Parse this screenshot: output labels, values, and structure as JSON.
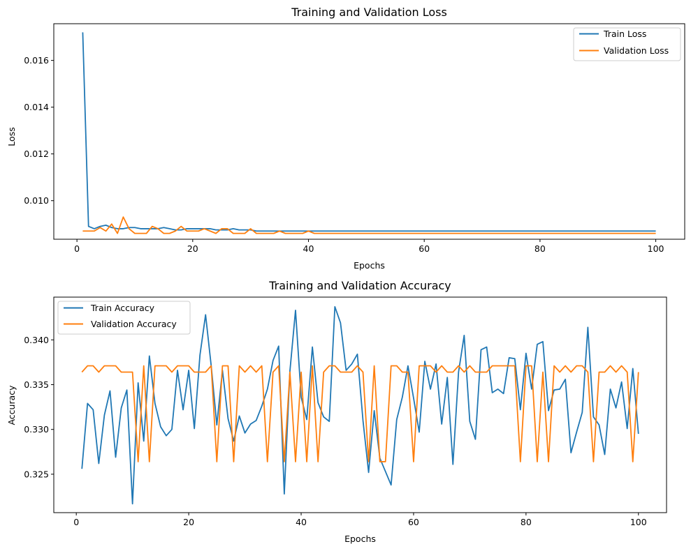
{
  "chart_data": [
    {
      "type": "line",
      "title": "Training and Validation Loss",
      "xlabel": "Epochs",
      "ylabel": "Loss",
      "xlim": [
        -4,
        105
      ],
      "ylim": [
        0.00835,
        0.01757
      ],
      "xticks": [
        0,
        20,
        40,
        60,
        80,
        100
      ],
      "xtick_labels": [
        "0",
        "20",
        "40",
        "60",
        "80",
        "100"
      ],
      "yticks": [
        0.01,
        0.012,
        0.014,
        0.016
      ],
      "ytick_labels": [
        "0.010",
        "0.012",
        "0.014",
        "0.016"
      ],
      "grid": false,
      "legend": "top-right",
      "series": [
        {
          "name": "Train Loss",
          "color": "#1f77b4",
          "x": [
            1,
            2,
            3,
            4,
            5,
            6,
            7,
            8,
            9,
            10,
            11,
            12,
            13,
            14,
            15,
            16,
            17,
            18,
            19,
            20,
            21,
            22,
            23,
            24,
            25,
            26,
            27,
            28,
            29,
            30,
            31,
            32,
            33,
            34,
            35,
            36,
            37,
            38,
            39,
            40,
            41,
            42,
            43,
            44,
            45,
            46,
            47,
            48,
            49,
            50,
            51,
            52,
            53,
            54,
            55,
            56,
            57,
            58,
            59,
            60,
            61,
            62,
            63,
            64,
            65,
            66,
            67,
            68,
            69,
            70,
            71,
            72,
            73,
            74,
            75,
            76,
            77,
            78,
            79,
            80,
            81,
            82,
            83,
            84,
            85,
            86,
            87,
            88,
            89,
            90,
            91,
            92,
            93,
            94,
            95,
            96,
            97,
            98,
            99,
            100
          ],
          "values": [
            0.0172,
            0.0089,
            0.0088,
            0.0089,
            0.00895,
            0.00885,
            0.0088,
            0.0088,
            0.00885,
            0.00885,
            0.0088,
            0.0088,
            0.0088,
            0.0088,
            0.00885,
            0.0088,
            0.00875,
            0.00875,
            0.0088,
            0.0088,
            0.0088,
            0.0088,
            0.0088,
            0.00875,
            0.00875,
            0.00875,
            0.0088,
            0.00875,
            0.00875,
            0.00875,
            0.0087,
            0.0087,
            0.0087,
            0.0087,
            0.0087,
            0.0087,
            0.0087,
            0.0087,
            0.0087,
            0.0087,
            0.0087,
            0.0087,
            0.0087,
            0.0087,
            0.0087,
            0.0087,
            0.0087,
            0.0087,
            0.0087,
            0.0087,
            0.0087,
            0.0087,
            0.0087,
            0.0087,
            0.0087,
            0.0087,
            0.0087,
            0.0087,
            0.0087,
            0.0087,
            0.0087,
            0.0087,
            0.0087,
            0.0087,
            0.0087,
            0.0087,
            0.0087,
            0.0087,
            0.0087,
            0.0087,
            0.0087,
            0.0087,
            0.0087,
            0.0087,
            0.0087,
            0.0087,
            0.0087,
            0.0087,
            0.0087,
            0.0087,
            0.0087,
            0.0087,
            0.0087,
            0.0087,
            0.0087,
            0.0087,
            0.0087,
            0.0087,
            0.0087,
            0.0087,
            0.0087,
            0.0087,
            0.0087,
            0.0087,
            0.0087,
            0.0087,
            0.0087,
            0.0087,
            0.0087,
            0.0087
          ]
        },
        {
          "name": "Validation Loss",
          "color": "#ff7f0e",
          "x": [
            1,
            2,
            3,
            4,
            5,
            6,
            7,
            8,
            9,
            10,
            11,
            12,
            13,
            14,
            15,
            16,
            17,
            18,
            19,
            20,
            21,
            22,
            23,
            24,
            25,
            26,
            27,
            28,
            29,
            30,
            31,
            32,
            33,
            34,
            35,
            36,
            37,
            38,
            39,
            40,
            41,
            42,
            43,
            44,
            45,
            46,
            47,
            48,
            49,
            50,
            51,
            52,
            53,
            54,
            55,
            56,
            57,
            58,
            59,
            60,
            61,
            62,
            63,
            64,
            65,
            66,
            67,
            68,
            69,
            70,
            71,
            72,
            73,
            74,
            75,
            76,
            77,
            78,
            79,
            80,
            81,
            82,
            83,
            84,
            85,
            86,
            87,
            88,
            89,
            90,
            91,
            92,
            93,
            94,
            95,
            96,
            97,
            98,
            99,
            100
          ],
          "values": [
            0.0087,
            0.0087,
            0.0087,
            0.00885,
            0.0087,
            0.009,
            0.0086,
            0.0093,
            0.0088,
            0.0086,
            0.0086,
            0.0086,
            0.0089,
            0.0088,
            0.0086,
            0.0086,
            0.0087,
            0.0089,
            0.0087,
            0.0087,
            0.0087,
            0.0088,
            0.0087,
            0.0086,
            0.0088,
            0.0088,
            0.0086,
            0.0086,
            0.0086,
            0.0088,
            0.0086,
            0.0086,
            0.0086,
            0.0086,
            0.0087,
            0.0086,
            0.0086,
            0.0086,
            0.0086,
            0.0087,
            0.0086,
            0.0086,
            0.0086,
            0.0086,
            0.0086,
            0.0086,
            0.0086,
            0.0086,
            0.0086,
            0.0086,
            0.0086,
            0.0086,
            0.0086,
            0.0086,
            0.0086,
            0.0086,
            0.0086,
            0.0086,
            0.0086,
            0.0086,
            0.0086,
            0.0086,
            0.0086,
            0.0086,
            0.0086,
            0.0086,
            0.0086,
            0.0086,
            0.0086,
            0.0086,
            0.0086,
            0.0086,
            0.0086,
            0.0086,
            0.0086,
            0.0086,
            0.0086,
            0.0086,
            0.0086,
            0.0086,
            0.0086,
            0.0086,
            0.0086,
            0.0086,
            0.0086,
            0.0086,
            0.0086,
            0.0086,
            0.0086,
            0.0086,
            0.0086,
            0.0086,
            0.0086,
            0.0086,
            0.0086,
            0.0086,
            0.0086,
            0.0086,
            0.0086,
            0.0086
          ]
        }
      ]
    },
    {
      "type": "line",
      "title": "Training and Validation Accuracy",
      "xlabel": "Epochs",
      "ylabel": "Accuracy",
      "xlim": [
        -4,
        105
      ],
      "ylim": [
        0.32071,
        0.34477
      ],
      "xticks": [
        0,
        20,
        40,
        60,
        80,
        100
      ],
      "xtick_labels": [
        "0",
        "20",
        "40",
        "60",
        "80",
        "100"
      ],
      "yticks": [
        0.325,
        0.33,
        0.335,
        0.34
      ],
      "ytick_labels": [
        "0.325",
        "0.330",
        "0.335",
        "0.340"
      ],
      "grid": false,
      "legend": "top-left",
      "series": [
        {
          "name": "Train Accuracy",
          "color": "#1f77b4",
          "x": [
            1,
            2,
            3,
            4,
            5,
            6,
            7,
            8,
            9,
            10,
            11,
            12,
            13,
            14,
            15,
            16,
            17,
            18,
            19,
            20,
            21,
            22,
            23,
            24,
            25,
            26,
            27,
            28,
            29,
            30,
            31,
            32,
            33,
            34,
            35,
            36,
            37,
            38,
            39,
            40,
            41,
            42,
            43,
            44,
            45,
            46,
            47,
            48,
            49,
            50,
            51,
            52,
            53,
            54,
            55,
            56,
            57,
            58,
            59,
            60,
            61,
            62,
            63,
            64,
            65,
            66,
            67,
            68,
            69,
            70,
            71,
            72,
            73,
            74,
            75,
            76,
            77,
            78,
            79,
            80,
            81,
            82,
            83,
            84,
            85,
            86,
            87,
            88,
            89,
            90,
            91,
            92,
            93,
            94,
            95,
            96,
            97,
            98,
            99,
            100
          ],
          "values": [
            0.3256,
            0.3329,
            0.3322,
            0.3262,
            0.3316,
            0.3343,
            0.3269,
            0.3324,
            0.3344,
            0.3217,
            0.3352,
            0.3287,
            0.3382,
            0.3329,
            0.3303,
            0.3293,
            0.33,
            0.3366,
            0.3322,
            0.3366,
            0.3301,
            0.3383,
            0.3428,
            0.3371,
            0.3305,
            0.3366,
            0.3312,
            0.3287,
            0.3315,
            0.3296,
            0.3306,
            0.331,
            0.3326,
            0.3345,
            0.3377,
            0.3393,
            0.3228,
            0.3365,
            0.3433,
            0.3336,
            0.3311,
            0.3392,
            0.333,
            0.3314,
            0.3309,
            0.3437,
            0.3419,
            0.3366,
            0.3373,
            0.3384,
            0.331,
            0.3252,
            0.3321,
            0.3268,
            0.3253,
            0.3238,
            0.3311,
            0.3336,
            0.3371,
            0.3335,
            0.3297,
            0.3376,
            0.3345,
            0.3373,
            0.3306,
            0.3358,
            0.3261,
            0.3364,
            0.3405,
            0.3309,
            0.3289,
            0.3389,
            0.3392,
            0.3341,
            0.3345,
            0.334,
            0.338,
            0.3379,
            0.3322,
            0.3385,
            0.3345,
            0.3395,
            0.3398,
            0.3321,
            0.3344,
            0.3345,
            0.3356,
            0.3274,
            0.3297,
            0.3319,
            0.3414,
            0.3314,
            0.3305,
            0.3272,
            0.3345,
            0.3324,
            0.3353,
            0.3301,
            0.3368,
            0.3295
          ]
        },
        {
          "name": "Validation Accuracy",
          "color": "#ff7f0e",
          "x": [
            1,
            2,
            3,
            4,
            5,
            6,
            7,
            8,
            9,
            10,
            11,
            12,
            13,
            14,
            15,
            16,
            17,
            18,
            19,
            20,
            21,
            22,
            23,
            24,
            25,
            26,
            27,
            28,
            29,
            30,
            31,
            32,
            33,
            34,
            35,
            36,
            37,
            38,
            39,
            40,
            41,
            42,
            43,
            44,
            45,
            46,
            47,
            48,
            49,
            50,
            51,
            52,
            53,
            54,
            55,
            56,
            57,
            58,
            59,
            60,
            61,
            62,
            63,
            64,
            65,
            66,
            67,
            68,
            69,
            70,
            71,
            72,
            73,
            74,
            75,
            76,
            77,
            78,
            79,
            80,
            81,
            82,
            83,
            84,
            85,
            86,
            87,
            88,
            89,
            90,
            91,
            92,
            93,
            94,
            95,
            96,
            97,
            98,
            99,
            100
          ],
          "values": [
            0.3364,
            0.3371,
            0.3371,
            0.3364,
            0.3371,
            0.3371,
            0.3371,
            0.3364,
            0.3364,
            0.3364,
            0.3264,
            0.3371,
            0.3264,
            0.3371,
            0.3371,
            0.3371,
            0.3364,
            0.3371,
            0.3371,
            0.3371,
            0.3364,
            0.3364,
            0.3364,
            0.3371,
            0.3264,
            0.3371,
            0.3371,
            0.3264,
            0.3371,
            0.3364,
            0.3371,
            0.3364,
            0.3371,
            0.3264,
            0.3364,
            0.3371,
            0.3264,
            0.3364,
            0.3264,
            0.3364,
            0.3264,
            0.3371,
            0.3264,
            0.3364,
            0.3371,
            0.3371,
            0.3364,
            0.3364,
            0.3364,
            0.3371,
            0.3364,
            0.3264,
            0.3371,
            0.3264,
            0.3264,
            0.3371,
            0.3371,
            0.3364,
            0.3364,
            0.3264,
            0.3371,
            0.3371,
            0.3371,
            0.3364,
            0.3371,
            0.3364,
            0.3364,
            0.3371,
            0.3364,
            0.3371,
            0.3364,
            0.3364,
            0.3364,
            0.3371,
            0.3371,
            0.3371,
            0.3371,
            0.3371,
            0.3264,
            0.3371,
            0.3371,
            0.3264,
            0.3364,
            0.3264,
            0.3371,
            0.3364,
            0.3371,
            0.3364,
            0.3371,
            0.3371,
            0.3364,
            0.3264,
            0.3364,
            0.3364,
            0.3371,
            0.3364,
            0.3371,
            0.3364,
            0.3264,
            0.3364
          ]
        }
      ]
    }
  ]
}
